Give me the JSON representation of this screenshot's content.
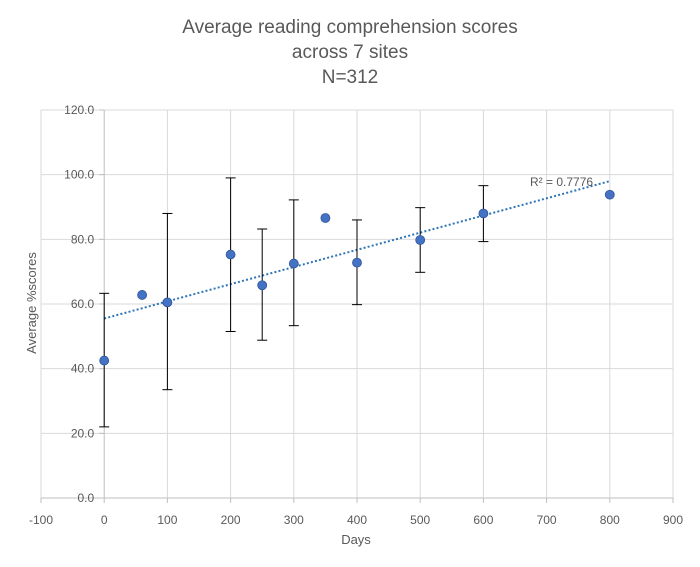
{
  "chart_data": {
    "type": "scatter",
    "title_lines": [
      "Average reading comprehension scores",
      "across 7 sites",
      "N=312"
    ],
    "xlabel": "Days",
    "ylabel": "Average %scores",
    "xlim": [
      -100,
      900
    ],
    "ylim": [
      0,
      120
    ],
    "x_ticks": [
      -100,
      0,
      100,
      200,
      300,
      400,
      500,
      600,
      700,
      800,
      900
    ],
    "x_tick_labels": [
      "-100",
      "0",
      "100",
      "200",
      "300",
      "400",
      "500",
      "600",
      "700",
      "800",
      "900"
    ],
    "y_ticks": [
      0,
      20,
      40,
      60,
      80,
      100,
      120
    ],
    "y_tick_labels": [
      "0.0",
      "20.0",
      "40.0",
      "60.0",
      "80.0",
      "100.0",
      "120.0"
    ],
    "grid": true,
    "legend": "none",
    "points": [
      {
        "x": 0,
        "y": 42.5,
        "err_low": 22.0,
        "err_high": 63.3
      },
      {
        "x": 60,
        "y": 62.8
      },
      {
        "x": 100,
        "y": 60.5,
        "err_low": 33.5,
        "err_high": 88.0
      },
      {
        "x": 200,
        "y": 75.3,
        "err_low": 51.5,
        "err_high": 99.0
      },
      {
        "x": 250,
        "y": 65.8,
        "err_low": 48.8,
        "err_high": 83.2
      },
      {
        "x": 300,
        "y": 72.5,
        "err_low": 53.3,
        "err_high": 92.2
      },
      {
        "x": 350,
        "y": 86.6
      },
      {
        "x": 400,
        "y": 72.8,
        "err_low": 59.8,
        "err_high": 86.0
      },
      {
        "x": 500,
        "y": 79.8,
        "err_low": 69.8,
        "err_high": 89.8
      },
      {
        "x": 600,
        "y": 88.0,
        "err_low": 79.3,
        "err_high": 96.6
      },
      {
        "x": 800,
        "y": 93.8
      }
    ],
    "trendline": {
      "type": "linear",
      "x": [
        0,
        800
      ],
      "y": [
        55.5,
        98.0
      ],
      "r2_label": "R² = 0.7776"
    },
    "colors": {
      "marker": "#4472c4",
      "trendline": "#2e75b6",
      "error_bar": "#000000",
      "grid": "#d9d9d9"
    }
  }
}
